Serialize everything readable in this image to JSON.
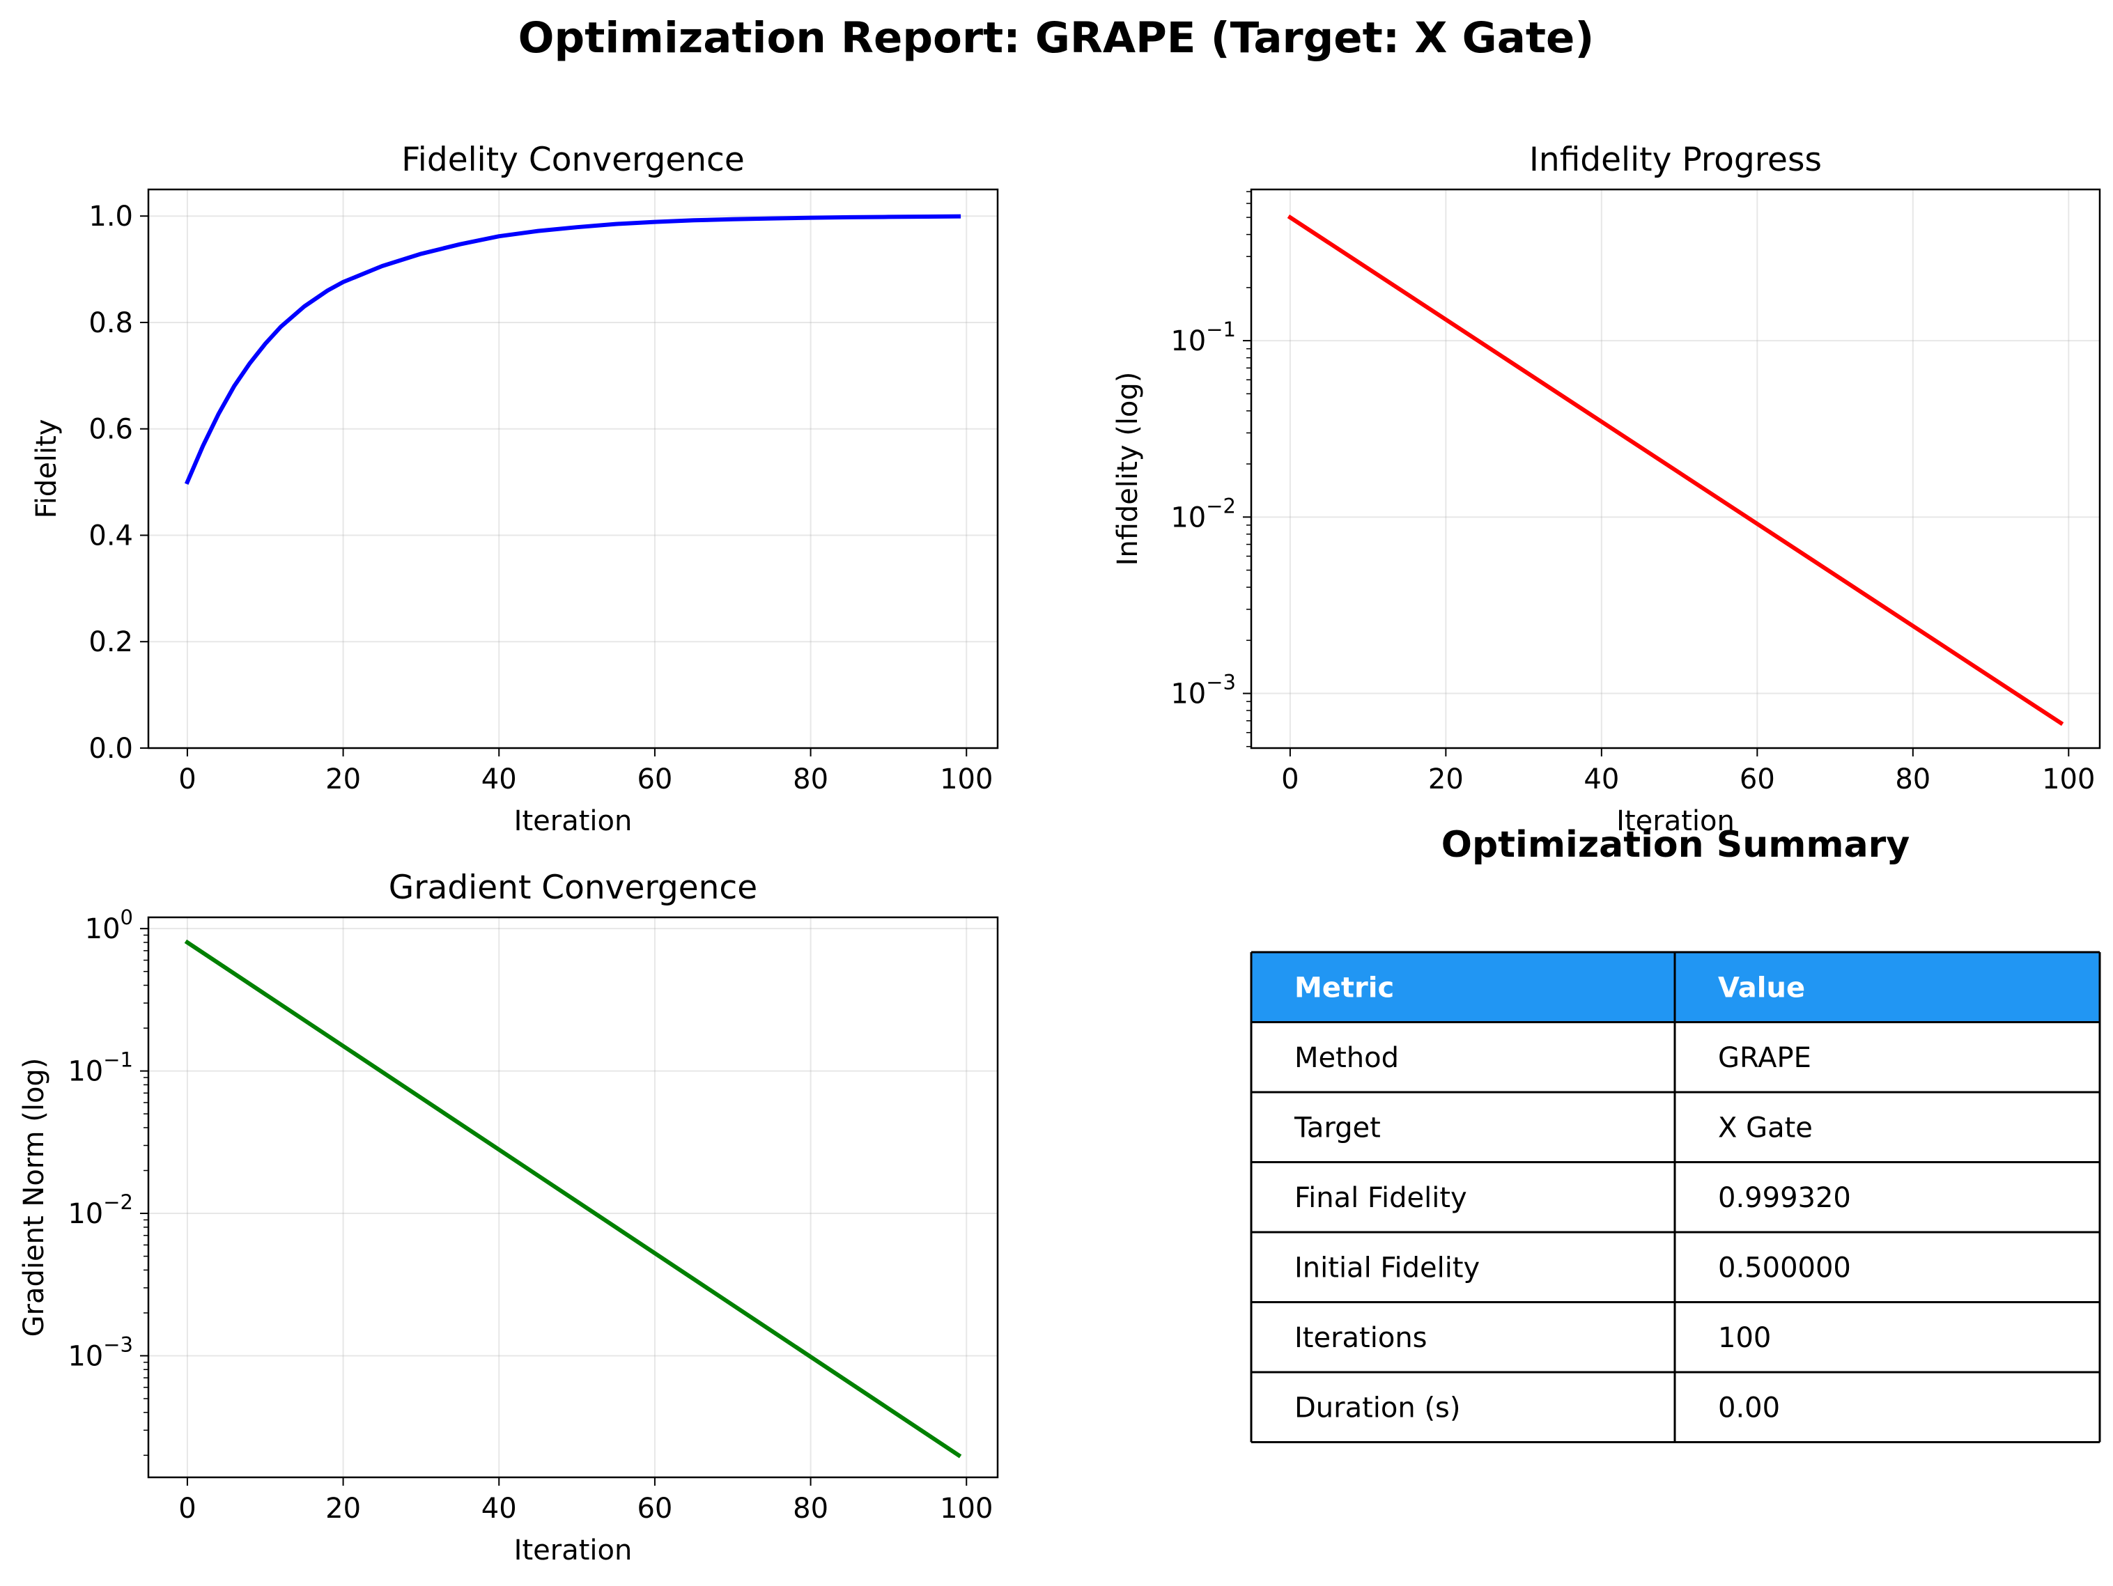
{
  "figure_title": "Optimization Report: GRAPE (Target: X Gate)",
  "chart_data": [
    {
      "type": "line",
      "title": "Fidelity Convergence",
      "xlabel": "Iteration",
      "ylabel": "Fidelity",
      "xlim": [
        -5,
        104
      ],
      "ylim": [
        0.0,
        1.05
      ],
      "yscale": "linear",
      "grid": true,
      "color": "#0000ff",
      "x_ticks": [
        "0",
        "20",
        "40",
        "60",
        "80",
        "100"
      ],
      "y_ticks": [
        "0.0",
        "0.2",
        "0.4",
        "0.6",
        "0.8",
        "1.0"
      ],
      "series": [
        {
          "x": [
            0,
            2,
            4,
            6,
            8,
            10,
            12,
            15,
            18,
            20,
            25,
            30,
            35,
            40,
            45,
            50,
            55,
            60,
            65,
            70,
            75,
            80,
            85,
            90,
            95,
            99
          ],
          "y": [
            0.5,
            0.568,
            0.628,
            0.68,
            0.723,
            0.76,
            0.792,
            0.83,
            0.86,
            0.876,
            0.906,
            0.929,
            0.947,
            0.962,
            0.972,
            0.979,
            0.985,
            0.989,
            0.992,
            0.994,
            0.9956,
            0.9968,
            0.9977,
            0.9984,
            0.9989,
            0.99932
          ]
        }
      ]
    },
    {
      "type": "line",
      "title": "Infidelity Progress",
      "xlabel": "Iteration",
      "ylabel": "Infidelity (log)",
      "xlim": [
        -5,
        104
      ],
      "ylim": [
        0.00049,
        0.72
      ],
      "yscale": "log",
      "grid": true,
      "color": "#ff0000",
      "x_ticks": [
        "0",
        "20",
        "40",
        "60",
        "80",
        "100"
      ],
      "y_ticks": [
        {
          "base": "10",
          "exp": "−1",
          "value": 0.1
        },
        {
          "base": "10",
          "exp": "−2",
          "value": 0.01
        },
        {
          "base": "10",
          "exp": "−3",
          "value": 0.001
        }
      ],
      "series": [
        {
          "x": [
            0,
            99
          ],
          "y": [
            0.5,
            0.00068
          ]
        }
      ]
    },
    {
      "type": "line",
      "title": "Gradient Convergence",
      "xlabel": "Iteration",
      "ylabel": "Gradient Norm (log)",
      "xlim": [
        -5,
        104
      ],
      "ylim": [
        0.00014,
        1.2
      ],
      "yscale": "log",
      "grid": true,
      "color": "#008000",
      "x_ticks": [
        "0",
        "20",
        "40",
        "60",
        "80",
        "100"
      ],
      "y_ticks": [
        {
          "base": "10",
          "exp": "0",
          "value": 1
        },
        {
          "base": "10",
          "exp": "−1",
          "value": 0.1
        },
        {
          "base": "10",
          "exp": "−2",
          "value": 0.01
        },
        {
          "base": "10",
          "exp": "−3",
          "value": 0.001
        }
      ],
      "series": [
        {
          "x": [
            0,
            99
          ],
          "y": [
            0.8,
            0.0002
          ]
        }
      ]
    },
    {
      "type": "table",
      "title": "Optimization Summary",
      "header_color": "#2196f3",
      "columns": [
        "Metric",
        "Value"
      ],
      "rows": [
        [
          "Method",
          "GRAPE"
        ],
        [
          "Target",
          "X Gate"
        ],
        [
          "Final Fidelity",
          "0.999320"
        ],
        [
          "Initial Fidelity",
          "0.500000"
        ],
        [
          "Iterations",
          "100"
        ],
        [
          "Duration (s)",
          "0.00"
        ]
      ]
    }
  ]
}
